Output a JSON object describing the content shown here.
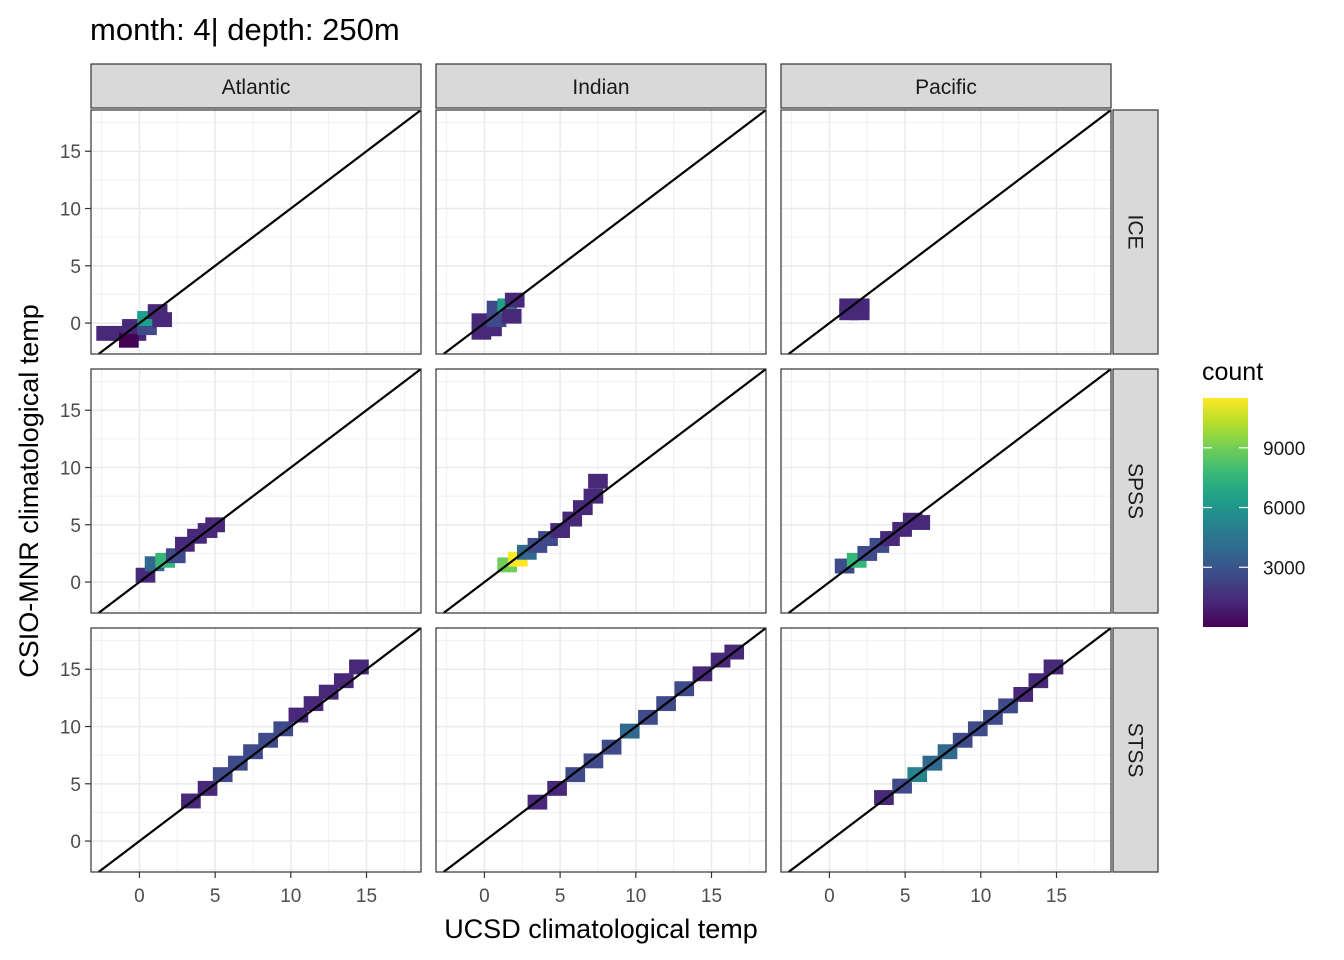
{
  "chart_data": {
    "type": "heatmap",
    "title": "month: 4| depth: 250m",
    "xlabel": "UCSD climatological temp",
    "ylabel": "CSIO-MNR climatological temp",
    "xlim": [
      -3.2,
      18.6
    ],
    "ylim": [
      -2.7,
      18.6
    ],
    "x_ticks": [
      0,
      5,
      10,
      15
    ],
    "y_ticks": [
      0,
      5,
      10,
      15
    ],
    "bin_width": 1.3,
    "grid": true,
    "reference_line": "y = x",
    "columns": [
      "Atlantic",
      "Indian",
      "Pacific"
    ],
    "rows": [
      "ICE",
      "SPSS",
      "STSS"
    ],
    "legend": {
      "title": "count",
      "position": "right",
      "ticks": [
        3000,
        6000,
        9000
      ],
      "min": 0,
      "max": 11500,
      "colors": [
        "#440154",
        "#482878",
        "#3e4a89",
        "#31688e",
        "#26828e",
        "#1f9e89",
        "#35b779",
        "#6ece58",
        "#b5de2b",
        "#fde725"
      ]
    },
    "panels": [
      {
        "row": "ICE",
        "col": "Atlantic",
        "cells": [
          [
            -2.2,
            -0.9,
            800
          ],
          [
            -1.2,
            -0.9,
            1200
          ],
          [
            -0.2,
            -0.9,
            1500
          ],
          [
            -0.7,
            -1.5,
            600
          ],
          [
            -0.5,
            -0.3,
            1500
          ],
          [
            0.5,
            -0.4,
            2200
          ],
          [
            0.5,
            0.4,
            7000
          ],
          [
            1.2,
            1.0,
            1300
          ],
          [
            1.5,
            0.3,
            1000
          ]
        ]
      },
      {
        "row": "ICE",
        "col": "Indian",
        "cells": [
          [
            -0.2,
            -0.8,
            1200
          ],
          [
            -0.2,
            0.2,
            1400
          ],
          [
            0.5,
            -0.5,
            1500
          ],
          [
            0.8,
            0.3,
            2500
          ],
          [
            0.8,
            1.3,
            2000
          ],
          [
            1.5,
            1.5,
            6000
          ],
          [
            2.0,
            2.0,
            1800
          ],
          [
            1.8,
            0.6,
            1000
          ]
        ]
      },
      {
        "row": "ICE",
        "col": "Pacific",
        "cells": [
          [
            1.3,
            1.5,
            1500
          ],
          [
            2.0,
            1.5,
            1300
          ],
          [
            1.3,
            0.9,
            1100
          ],
          [
            2.0,
            0.9,
            900
          ]
        ]
      },
      {
        "row": "SPSS",
        "col": "Atlantic",
        "cells": [
          [
            0.4,
            0.6,
            1400
          ],
          [
            1.0,
            1.6,
            4000
          ],
          [
            1.7,
            1.9,
            8000
          ],
          [
            2.4,
            2.3,
            2500
          ],
          [
            3.0,
            3.3,
            1800
          ],
          [
            3.8,
            4.0,
            1600
          ],
          [
            4.5,
            4.5,
            1200
          ],
          [
            5.0,
            5.0,
            900
          ]
        ]
      },
      {
        "row": "SPSS",
        "col": "Indian",
        "cells": [
          [
            1.5,
            1.5,
            9000
          ],
          [
            2.2,
            2.0,
            11500
          ],
          [
            2.8,
            2.6,
            4000
          ],
          [
            3.5,
            3.2,
            2500
          ],
          [
            4.2,
            3.8,
            2000
          ],
          [
            5.0,
            4.5,
            1500
          ],
          [
            5.8,
            5.5,
            1500
          ],
          [
            6.5,
            6.5,
            1200
          ],
          [
            7.2,
            7.5,
            1200
          ],
          [
            7.5,
            8.8,
            1000
          ]
        ]
      },
      {
        "row": "SPSS",
        "col": "Pacific",
        "cells": [
          [
            1.0,
            1.4,
            3000
          ],
          [
            1.8,
            1.9,
            8000
          ],
          [
            2.5,
            2.5,
            3000
          ],
          [
            3.3,
            3.2,
            2000
          ],
          [
            4.0,
            3.8,
            1500
          ],
          [
            4.8,
            4.6,
            1200
          ],
          [
            5.5,
            5.4,
            1000
          ],
          [
            6.0,
            5.2,
            900
          ]
        ]
      },
      {
        "row": "STSS",
        "col": "Atlantic",
        "cells": [
          [
            3.4,
            3.5,
            1500
          ],
          [
            4.5,
            4.6,
            1800
          ],
          [
            5.5,
            5.8,
            2000
          ],
          [
            6.5,
            6.8,
            2500
          ],
          [
            7.5,
            7.8,
            2500
          ],
          [
            8.5,
            8.8,
            2200
          ],
          [
            9.5,
            9.8,
            2000
          ],
          [
            10.5,
            11.0,
            1800
          ],
          [
            11.5,
            12.0,
            1600
          ],
          [
            12.5,
            13.0,
            1500
          ],
          [
            13.5,
            14.0,
            1400
          ],
          [
            14.5,
            15.2,
            1200
          ]
        ]
      },
      {
        "row": "STSS",
        "col": "Indian",
        "cells": [
          [
            3.5,
            3.4,
            1200
          ],
          [
            4.8,
            4.6,
            1500
          ],
          [
            6.0,
            5.8,
            2000
          ],
          [
            7.2,
            7.0,
            2500
          ],
          [
            8.4,
            8.2,
            2800
          ],
          [
            9.6,
            9.6,
            3500
          ],
          [
            10.8,
            10.8,
            3000
          ],
          [
            12.0,
            12.0,
            2200
          ],
          [
            13.2,
            13.3,
            2000
          ],
          [
            14.4,
            14.6,
            1600
          ],
          [
            15.6,
            15.8,
            1300
          ],
          [
            16.5,
            16.5,
            1000
          ]
        ]
      },
      {
        "row": "STSS",
        "col": "Pacific",
        "cells": [
          [
            3.6,
            3.8,
            1200
          ],
          [
            4.8,
            4.8,
            2000
          ],
          [
            5.8,
            5.8,
            5000
          ],
          [
            6.8,
            6.8,
            4200
          ],
          [
            7.8,
            7.8,
            3500
          ],
          [
            8.8,
            8.8,
            3000
          ],
          [
            9.8,
            9.8,
            2500
          ],
          [
            10.8,
            10.8,
            2200
          ],
          [
            11.8,
            11.8,
            2000
          ],
          [
            12.8,
            12.8,
            1800
          ],
          [
            13.8,
            14.0,
            1500
          ],
          [
            14.8,
            15.2,
            1200
          ]
        ]
      }
    ]
  }
}
